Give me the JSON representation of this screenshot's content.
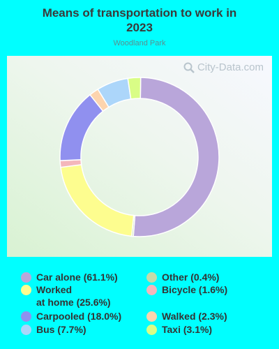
{
  "title_line1": "Means of transportation to work in",
  "title_line2": "2023",
  "subtitle": "Woodland Park",
  "watermark": "City-Data.com",
  "chart_data": {
    "type": "pie",
    "title": "Means of transportation to work in 2023",
    "subtitle": "Woodland Park",
    "categories": [
      "Car alone",
      "Worked at home",
      "Bicycle",
      "Carpooled",
      "Walked",
      "Bus",
      "Taxi",
      "Other"
    ],
    "values": [
      61.1,
      25.6,
      1.6,
      18.0,
      2.3,
      7.7,
      3.1,
      0.4
    ],
    "drawing_order": [
      "Car alone",
      "Other",
      "Worked at home",
      "Bicycle",
      "Carpooled",
      "Walked",
      "Bus",
      "Taxi"
    ],
    "colors": {
      "Car alone": "#b9a6da",
      "Worked at home": "#fdfd8f",
      "Bicycle": "#f4b7bb",
      "Carpooled": "#9090ef",
      "Walked": "#fdd4ae",
      "Bus": "#acd6fa",
      "Taxi": "#d9fd86",
      "Other": "#c4dba9"
    },
    "donut": true
  },
  "legend": [
    {
      "label": "Car alone (61.1%)",
      "color": "#b9a6da"
    },
    {
      "label": "Worked\nat home (25.6%)",
      "color": "#fdfd8f"
    },
    {
      "label": "Carpooled (18.0%)",
      "color": "#9090ef"
    },
    {
      "label": "Bus (7.7%)",
      "color": "#acd6fa"
    },
    {
      "label": "Other (0.4%)",
      "color": "#c4dba9"
    },
    {
      "label": "Bicycle (1.6%)",
      "color": "#f4b7bb"
    },
    {
      "label": "Walked (2.3%)",
      "color": "#fdd4ae"
    },
    {
      "label": "Taxi (3.1%)",
      "color": "#d9fd86"
    }
  ]
}
